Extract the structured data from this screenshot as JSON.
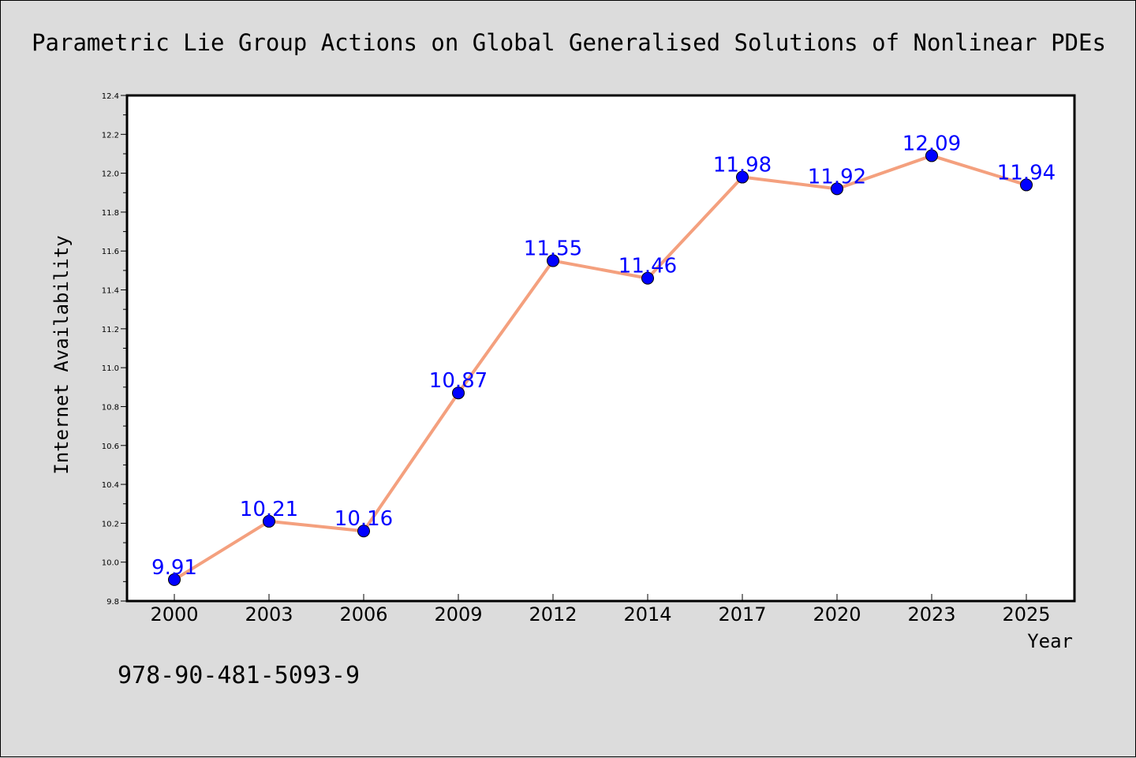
{
  "chart_data": {
    "type": "line",
    "title": "Parametric Lie Group Actions on Global Generalised Solutions of Nonlinear PDEs",
    "xlabel": "Year",
    "ylabel": "Internet Availability",
    "categories": [
      "2000",
      "2003",
      "2006",
      "2009",
      "2012",
      "2014",
      "2017",
      "2020",
      "2023",
      "2025"
    ],
    "values": [
      9.91,
      10.21,
      10.16,
      10.87,
      11.55,
      11.46,
      11.98,
      11.92,
      12.09,
      11.94
    ],
    "data_labels": [
      "9.91",
      "10.21",
      "10.16",
      "10.87",
      "11.55",
      "11.46",
      "11.98",
      "11.92",
      "12.09",
      "11.94"
    ],
    "ylim": [
      9.8,
      12.4
    ],
    "yticks": [
      "9.8",
      "10.0",
      "10.2",
      "10.4",
      "10.6",
      "10.8",
      "11.0",
      "11.2",
      "11.4",
      "11.6",
      "11.8",
      "12.0",
      "12.2",
      "12.4"
    ],
    "grid": false,
    "legend": "none",
    "colors": {
      "line": "#f4a07e",
      "marker": "#0000ff",
      "data_label": "#0000ff",
      "background": "#dcdcdc",
      "plot_area": "#ffffff"
    }
  },
  "footer_note": "978-90-481-5093-9"
}
